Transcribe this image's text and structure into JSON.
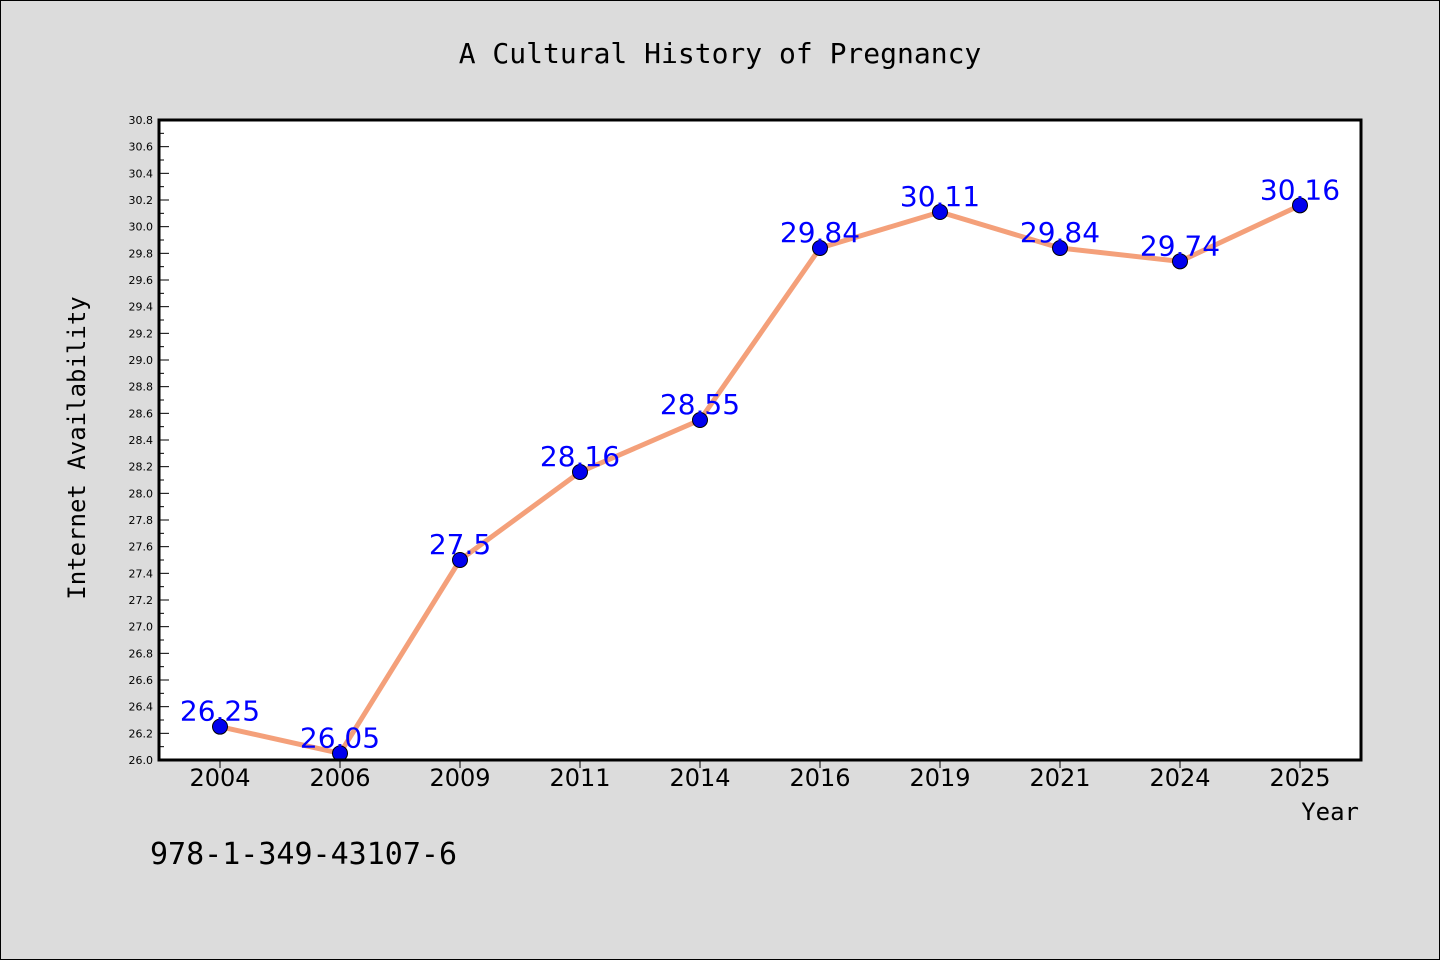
{
  "chart_data": {
    "type": "line",
    "title": "A Cultural History of Pregnancy",
    "xlabel": "Year",
    "ylabel": "Internet Availability",
    "categories": [
      "2004",
      "2006",
      "2009",
      "2011",
      "2014",
      "2016",
      "2019",
      "2021",
      "2024",
      "2025"
    ],
    "series": [
      {
        "values": [
          26.25,
          26.05,
          27.5,
          28.16,
          28.55,
          29.84,
          30.11,
          29.84,
          29.74,
          30.16
        ],
        "data_labels": [
          "26.25",
          "26.05",
          "27.5",
          "28.16",
          "28.55",
          "29.84",
          "30.11",
          "29.84",
          "29.74",
          "30.16"
        ]
      }
    ],
    "ylim": [
      26.0,
      30.8
    ],
    "yticks": [
      "26.0",
      "26.2",
      "26.4",
      "26.6",
      "26.8",
      "27.0",
      "27.2",
      "27.4",
      "27.6",
      "27.8",
      "28.0",
      "28.2",
      "28.4",
      "28.6",
      "28.8",
      "29.0",
      "29.2",
      "29.4",
      "29.6",
      "29.8",
      "30.0",
      "30.2",
      "30.4",
      "30.6",
      "30.8"
    ],
    "grid": false,
    "legend": "none"
  },
  "footer": {
    "isbn": "978-1-349-43107-6"
  },
  "colors": {
    "background": "#dcdcdc",
    "plot_background": "#ffffff",
    "line": "#f4a07a",
    "marker": "#0000ee",
    "data_label": "#0000ff"
  }
}
